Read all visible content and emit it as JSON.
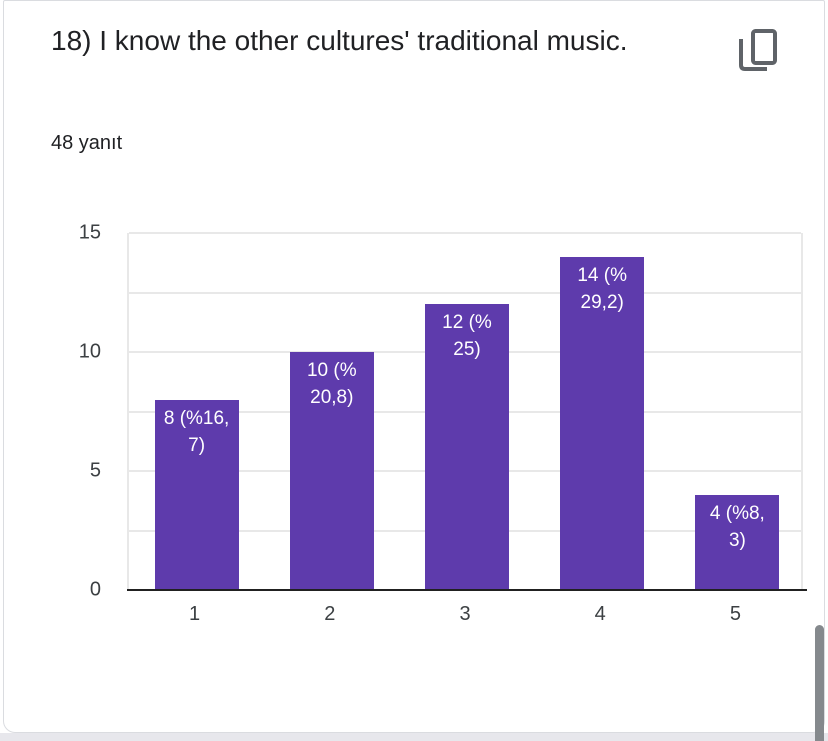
{
  "card": {
    "title": "18) I know the other cultures' traditional music.",
    "response_count": "48 yanıt"
  },
  "chart_data": {
    "type": "bar",
    "title": "18) I know the other cultures' traditional music.",
    "subtitle": "48 yanıt",
    "categories": [
      "1",
      "2",
      "3",
      "4",
      "5"
    ],
    "values": [
      8,
      10,
      12,
      14,
      4
    ],
    "bar_labels": [
      "8 (%16,\n7)",
      "10 (%\n20,8)",
      "12 (%\n25)",
      "14 (%\n29,2)",
      "4 (%8,\n3)"
    ],
    "bar_labels_full": [
      "8 (%16,7)",
      "10 (%20,8)",
      "12 (%25)",
      "14 (%29,2)",
      "4 (%8,3)"
    ],
    "xlabel": "",
    "ylabel": "",
    "ylim": [
      0,
      15
    ],
    "yticks": [
      0,
      5,
      10,
      15
    ],
    "gridline_step": 2.5,
    "grid_on": true,
    "legend_position": "none"
  },
  "colors": {
    "bar_color": "#5e3bac",
    "bar_label_color": "#ffffff",
    "gridline_color": "#e8e8e8",
    "axis_color": "#212121",
    "icon_color": "#5f6368",
    "title_color": "#202124",
    "tick_color": "#3c4043",
    "card_border": "#dadce0"
  }
}
